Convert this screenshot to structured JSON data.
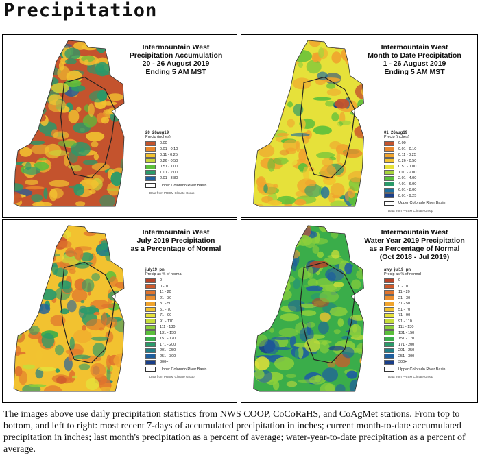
{
  "page_title": "Precipitation",
  "panels": [
    {
      "title_lines": [
        "Intermountain West",
        "Precipitation Accumulation",
        "20 - 26 August 2019",
        "Ending 5 AM MST"
      ],
      "legend_layer": "20_26aug19",
      "legend_units": "Precip (inches)",
      "legend_items": [
        {
          "label": "0.00",
          "color": "#c4532d"
        },
        {
          "label": "0.01 - 0.10",
          "color": "#e8862c"
        },
        {
          "label": "0.11 - 0.25",
          "color": "#f2c230"
        },
        {
          "label": "0.26 - 0.50",
          "color": "#c8d63a"
        },
        {
          "label": "0.51 - 1.00",
          "color": "#5bbf3b"
        },
        {
          "label": "1.01 - 2.00",
          "color": "#2a9a6a"
        },
        {
          "label": "2.01 - 3.80",
          "color": "#1f5f9e"
        }
      ],
      "basin_label": "Upper Colorado River Basin",
      "credit": "Data from PRISM Climate Group",
      "dominant_color": "#c4532d",
      "secondary_color": "#f2c230",
      "accent_color": "#2a9a6a"
    },
    {
      "title_lines": [
        "Intermountain West",
        "Month to Date Precipitation",
        "1 - 26 August 2019",
        "Ending 5 AM MST"
      ],
      "legend_layer": "01_26aug19",
      "legend_units": "Precip (inches)",
      "legend_items": [
        {
          "label": "0.00",
          "color": "#c4532d"
        },
        {
          "label": "0.01 - 0.10",
          "color": "#e8862c"
        },
        {
          "label": "0.11 - 0.25",
          "color": "#f0a42e"
        },
        {
          "label": "0.26 - 0.50",
          "color": "#f2c230"
        },
        {
          "label": "0.51 - 1.00",
          "color": "#e6e13a"
        },
        {
          "label": "1.01 - 2.00",
          "color": "#a6d43c"
        },
        {
          "label": "2.01 - 4.00",
          "color": "#5bbf3b"
        },
        {
          "label": "4.01 - 6.00",
          "color": "#2a9a6a"
        },
        {
          "label": "6.01 - 8.00",
          "color": "#1f6f9e"
        },
        {
          "label": "8.01 - 9.25",
          "color": "#1a3f8a"
        }
      ],
      "basin_label": "Upper Colorado River Basin",
      "credit": "Data from PRISM Climate Group",
      "dominant_color": "#e6e13a",
      "secondary_color": "#f0a42e",
      "accent_color": "#5bbf3b"
    },
    {
      "title_lines": [
        "Intermountain West",
        "July 2019 Precipitation",
        "as a Percentage of Normal"
      ],
      "legend_layer": "july19_pn",
      "legend_units": "Precip as % of normal",
      "legend_items": [
        {
          "label": "0",
          "color": "#b8452a"
        },
        {
          "label": "0 - 10",
          "color": "#cf5a2c"
        },
        {
          "label": "11 - 20",
          "color": "#e0742d"
        },
        {
          "label": "21 - 30",
          "color": "#ea8d2e"
        },
        {
          "label": "31 - 50",
          "color": "#f0a42e"
        },
        {
          "label": "51 - 70",
          "color": "#f2c230"
        },
        {
          "label": "71 - 90",
          "color": "#e6e13a"
        },
        {
          "label": "91 - 110",
          "color": "#c6dd3a"
        },
        {
          "label": "111 - 130",
          "color": "#8ccf3b"
        },
        {
          "label": "131 - 150",
          "color": "#5bbf3b"
        },
        {
          "label": "151 - 170",
          "color": "#3aad4a"
        },
        {
          "label": "171 - 200",
          "color": "#2a9a6a"
        },
        {
          "label": "201 - 250",
          "color": "#237f86"
        },
        {
          "label": "251 - 300",
          "color": "#1f5f9e"
        },
        {
          "label": "300+",
          "color": "#1a3f8a"
        }
      ],
      "basin_label": "Upper Colorado River Basin",
      "credit": "Data from PRISM Climate Group",
      "dominant_color": "#f2c230",
      "secondary_color": "#e0742d",
      "accent_color": "#2a9a6a"
    },
    {
      "title_lines": [
        "Intermountain West",
        "Water Year 2019 Precipitation",
        "as a Percentage of Normal",
        "(Oct 2018 - Jul 2019)"
      ],
      "legend_layer": "awy_jul19_pn",
      "legend_units": "Precip as % of normal",
      "legend_items": [
        {
          "label": "0",
          "color": "#b8452a"
        },
        {
          "label": "0 - 10",
          "color": "#cf5a2c"
        },
        {
          "label": "11 - 20",
          "color": "#e0742d"
        },
        {
          "label": "21 - 30",
          "color": "#ea8d2e"
        },
        {
          "label": "31 - 50",
          "color": "#f0a42e"
        },
        {
          "label": "51 - 70",
          "color": "#f2c230"
        },
        {
          "label": "71 - 90",
          "color": "#e6e13a"
        },
        {
          "label": "91 - 110",
          "color": "#c6dd3a"
        },
        {
          "label": "111 - 130",
          "color": "#8ccf3b"
        },
        {
          "label": "131 - 150",
          "color": "#5bbf3b"
        },
        {
          "label": "151 - 170",
          "color": "#3aad4a"
        },
        {
          "label": "171 - 200",
          "color": "#2a9a6a"
        },
        {
          "label": "201 - 250",
          "color": "#237f86"
        },
        {
          "label": "251 - 300",
          "color": "#1f5f9e"
        },
        {
          "label": "300+",
          "color": "#1a3f8a"
        }
      ],
      "basin_label": "Upper Colorado River Basin",
      "credit": "Data from PRISM Climate Group",
      "dominant_color": "#3aad4a",
      "secondary_color": "#8ccf3b",
      "accent_color": "#1f5f9e"
    }
  ],
  "caption": "The images above use daily precipitation statistics from NWS COOP, CoCoRaHS, and CoAgMet stations. From top to bottom, and left to right: most recent 7-days of accumulated precipitation in inches; current month-to-date accumulated precipitation in inches; last month's precipitation as a percent of average; water-year-to-date precipitation as a percent of average."
}
